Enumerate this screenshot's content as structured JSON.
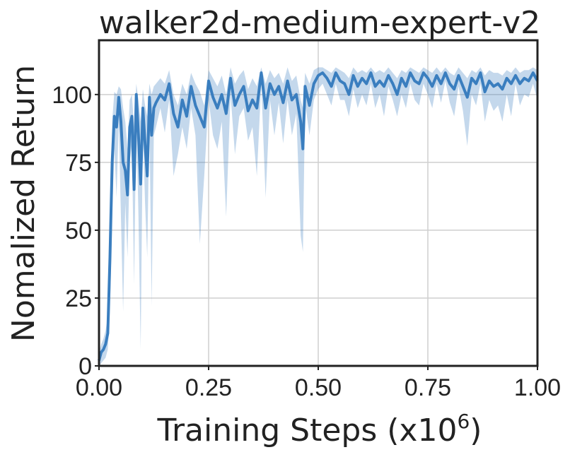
{
  "chart_data": {
    "type": "line",
    "title": "walker2d-medium-expert-v2",
    "xlabel": "Training Steps (x10",
    "xlabel_exponent": "6",
    "xlabel_close": ")",
    "ylabel": "Nomalized Return",
    "xlim": [
      0,
      1.0
    ],
    "ylim": [
      0,
      120
    ],
    "xticks": [
      0.0,
      0.25,
      0.5,
      0.75,
      1.0
    ],
    "xtick_labels": [
      "0.00",
      "0.25",
      "0.50",
      "0.75",
      "1.00"
    ],
    "yticks": [
      0,
      25,
      50,
      75,
      100
    ],
    "ytick_labels": [
      "0",
      "25",
      "50",
      "75",
      "100"
    ],
    "grid": true,
    "line_color": "#3a7ebf",
    "band_color": "#3a7ebf",
    "series": [
      {
        "x": [
          0.0,
          0.005,
          0.01,
          0.015,
          0.02,
          0.025,
          0.03,
          0.035,
          0.04,
          0.045,
          0.05,
          0.055,
          0.06,
          0.065,
          0.07,
          0.075,
          0.08,
          0.085,
          0.09,
          0.095,
          0.1,
          0.105,
          0.11,
          0.115,
          0.12,
          0.125,
          0.13,
          0.14,
          0.15,
          0.16,
          0.17,
          0.18,
          0.19,
          0.2,
          0.21,
          0.22,
          0.23,
          0.24,
          0.25,
          0.26,
          0.27,
          0.28,
          0.29,
          0.3,
          0.31,
          0.32,
          0.33,
          0.34,
          0.35,
          0.36,
          0.37,
          0.38,
          0.39,
          0.4,
          0.41,
          0.42,
          0.43,
          0.44,
          0.45,
          0.46,
          0.465,
          0.47,
          0.48,
          0.49,
          0.5,
          0.51,
          0.52,
          0.53,
          0.54,
          0.55,
          0.56,
          0.57,
          0.58,
          0.59,
          0.6,
          0.61,
          0.62,
          0.63,
          0.64,
          0.65,
          0.66,
          0.67,
          0.68,
          0.69,
          0.7,
          0.71,
          0.72,
          0.73,
          0.74,
          0.75,
          0.76,
          0.77,
          0.78,
          0.79,
          0.8,
          0.81,
          0.82,
          0.83,
          0.84,
          0.85,
          0.86,
          0.87,
          0.88,
          0.89,
          0.9,
          0.91,
          0.92,
          0.93,
          0.94,
          0.95,
          0.96,
          0.97,
          0.98,
          0.99,
          1.0
        ],
        "mean": [
          2,
          5,
          6,
          8,
          12,
          40,
          75,
          92,
          88,
          99,
          90,
          75,
          72,
          63,
          88,
          92,
          65,
          100,
          85,
          67,
          95,
          82,
          70,
          99,
          85,
          95,
          97,
          100,
          98,
          104,
          93,
          88,
          98,
          92,
          103,
          96,
          92,
          88,
          105,
          99,
          95,
          100,
          93,
          106,
          96,
          100,
          103,
          94,
          98,
          95,
          108,
          95,
          104,
          100,
          103,
          97,
          105,
          98,
          100,
          90,
          80,
          103,
          96,
          104,
          107,
          108,
          106,
          103,
          108,
          105,
          104,
          100,
          107,
          103,
          106,
          104,
          108,
          103,
          105,
          103,
          107,
          104,
          100,
          106,
          103,
          108,
          105,
          104,
          108,
          106,
          103,
          107,
          104,
          108,
          104,
          102,
          107,
          103,
          99,
          106,
          104,
          108,
          101,
          105,
          103,
          104,
          102,
          106,
          104,
          107,
          104,
          106,
          105,
          108,
          105
        ],
        "lower": [
          0,
          1,
          2,
          3,
          6,
          20,
          55,
          80,
          62,
          90,
          55,
          20,
          60,
          40,
          75,
          82,
          30,
          92,
          55,
          6,
          88,
          60,
          40,
          92,
          22,
          85,
          88,
          95,
          86,
          98,
          70,
          78,
          88,
          80,
          95,
          85,
          45,
          70,
          98,
          85,
          80,
          90,
          55,
          100,
          78,
          92,
          95,
          83,
          88,
          70,
          104,
          62,
          98,
          85,
          97,
          82,
          98,
          85,
          93,
          48,
          42,
          97,
          85,
          98,
          102,
          104,
          100,
          96,
          104,
          98,
          98,
          92,
          102,
          95,
          100,
          96,
          104,
          95,
          100,
          92,
          103,
          98,
          92,
          100,
          95,
          104,
          98,
          96,
          104,
          100,
          95,
          104,
          97,
          105,
          97,
          92,
          103,
          94,
          81,
          100,
          96,
          104,
          90,
          98,
          94,
          96,
          90,
          100,
          92,
          104,
          96,
          100,
          99,
          104,
          98
        ],
        "upper": [
          5,
          8,
          10,
          13,
          18,
          55,
          90,
          101,
          100,
          103,
          102,
          95,
          90,
          80,
          98,
          100,
          88,
          104,
          98,
          90,
          102,
          96,
          92,
          104,
          100,
          103,
          104,
          106,
          104,
          109,
          100,
          96,
          104,
          100,
          108,
          104,
          101,
          96,
          109,
          106,
          103,
          107,
          100,
          110,
          104,
          107,
          109,
          102,
          106,
          103,
          110,
          104,
          109,
          106,
          108,
          104,
          110,
          105,
          107,
          98,
          95,
          108,
          104,
          109,
          110,
          110,
          109,
          108,
          110,
          109,
          108,
          106,
          110,
          108,
          109,
          108,
          110,
          108,
          109,
          108,
          110,
          108,
          106,
          109,
          108,
          110,
          109,
          108,
          110,
          109,
          108,
          110,
          108,
          110,
          108,
          107,
          110,
          108,
          106,
          109,
          108,
          110,
          107,
          109,
          108,
          108,
          107,
          109,
          108,
          110,
          108,
          109,
          109,
          110,
          109
        ]
      }
    ]
  }
}
